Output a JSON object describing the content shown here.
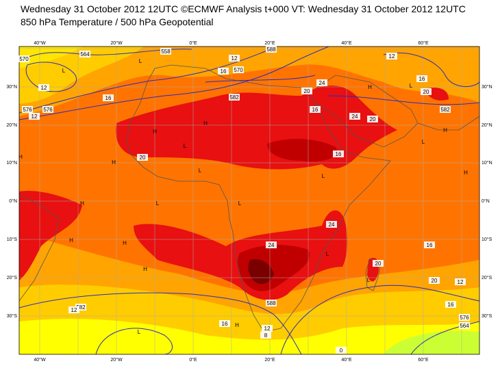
{
  "header": {
    "line1": "Wednesday 31 October 2012 12UTC ©ECMWF Analysis t+000 VT: Wednesday 31 October 2012 12UTC",
    "line2": "850 hPa Temperature / 500 hPa Geopotential"
  },
  "map": {
    "lon_labels": [
      "40°W",
      "20°W",
      "0°E",
      "20°E",
      "40°E",
      "60°E"
    ],
    "lat_labels": [
      "30°N",
      "20°N",
      "10°N",
      "0°N",
      "10°S",
      "20°S",
      "30°S"
    ],
    "contour_labels": [
      "570",
      "564",
      "558",
      "12",
      "16",
      "570",
      "576",
      "12",
      "16",
      "576",
      "582",
      "588",
      "12",
      "16",
      "12",
      "20",
      "20",
      "24",
      "24",
      "20",
      "16",
      "582",
      "20",
      "16",
      "24",
      "20",
      "24",
      "16",
      "20",
      "12",
      "16",
      "582",
      "588",
      "16",
      "12",
      "8",
      "12",
      "576",
      "564",
      "0"
    ],
    "highs_lows": [
      "L",
      "L",
      "H",
      "H",
      "L",
      "H",
      "H",
      "H",
      "L",
      "L",
      "H",
      "L",
      "H",
      "H",
      "L",
      "L",
      "H",
      "L",
      "H",
      "L",
      "H",
      "L",
      "H",
      "L"
    ]
  }
}
